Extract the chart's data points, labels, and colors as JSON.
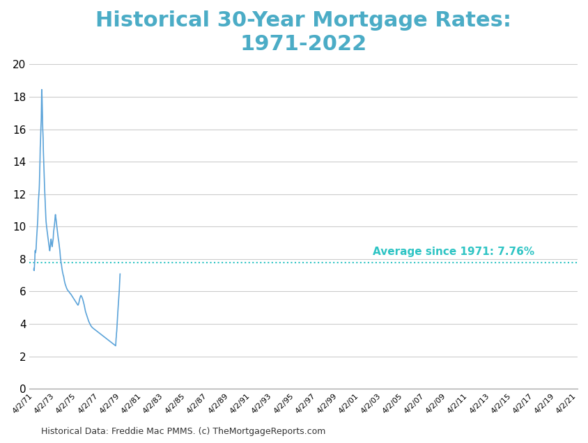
{
  "title": "Historical 30-Year Mortgage Rates:\n1971-2022",
  "title_color": "#4BACC6",
  "title_fontsize": 22,
  "title_fontweight": "bold",
  "avg_label": "Average since 1971: 7.76%",
  "avg_value": 7.76,
  "avg_color": "#2EC4C4",
  "line_color": "#5BA3D9",
  "line_width": 1.2,
  "footnote": "Historical Data: Freddie Mac PMMS. (c) TheMortgageReports.com",
  "ylim": [
    0,
    20
  ],
  "yticks": [
    0,
    2,
    4,
    6,
    8,
    10,
    12,
    14,
    16,
    18,
    20
  ],
  "background_color": "#FFFFFF",
  "grid_color": "#CCCCCC",
  "xtick_labels": [
    "4/2/71",
    "4/2/73",
    "4/2/75",
    "4/2/77",
    "4/2/79",
    "4/2/81",
    "4/2/83",
    "4/2/85",
    "4/2/87",
    "4/2/89",
    "4/2/91",
    "4/2/93",
    "4/2/95",
    "4/2/97",
    "4/2/99",
    "4/2/01",
    "4/2/03",
    "4/2/05",
    "4/2/07",
    "4/2/09",
    "4/2/11",
    "4/2/13",
    "4/2/15",
    "4/2/17",
    "4/2/19",
    "4/2/21"
  ],
  "mortgage_rates": [
    7.33,
    7.44,
    7.29,
    7.54,
    7.73,
    8.0,
    8.45,
    8.53,
    8.38,
    8.44,
    8.53,
    8.61,
    8.89,
    9.19,
    9.37,
    9.56,
    9.75,
    9.97,
    10.17,
    10.38,
    10.77,
    11.12,
    11.54,
    11.73,
    11.93,
    12.07,
    12.29,
    12.64,
    13.15,
    13.74,
    14.18,
    14.88,
    15.12,
    15.64,
    16.04,
    16.35,
    16.63,
    17.48,
    18.45,
    18.2,
    17.8,
    17.2,
    16.54,
    16.0,
    15.75,
    15.38,
    14.67,
    14.27,
    13.88,
    13.47,
    13.0,
    12.65,
    12.35,
    12.04,
    11.74,
    11.43,
    11.07,
    10.75,
    10.52,
    10.31,
    10.18,
    10.06,
    9.94,
    9.85,
    9.72,
    9.64,
    9.52,
    9.44,
    9.32,
    9.21,
    9.14,
    9.05,
    8.93,
    8.82,
    8.72,
    8.62,
    8.53,
    8.51,
    8.65,
    8.8,
    8.94,
    9.05,
    9.14,
    9.23,
    9.17,
    9.03,
    8.89,
    8.82,
    8.76,
    8.83,
    8.97,
    9.05,
    9.14,
    9.23,
    9.44,
    9.67,
    9.75,
    9.86,
    9.97,
    10.08,
    10.18,
    10.33,
    10.51,
    10.67,
    10.74,
    10.62,
    10.52,
    10.44,
    10.31,
    10.21,
    10.08,
    9.97,
    9.88,
    9.74,
    9.63,
    9.54,
    9.44,
    9.32,
    9.21,
    9.14,
    9.07,
    8.97,
    8.85,
    8.72,
    8.63,
    8.54,
    8.38,
    8.22,
    8.07,
    7.96,
    7.87,
    7.78,
    7.71,
    7.63,
    7.52,
    7.43,
    7.35,
    7.28,
    7.2,
    7.15,
    7.08,
    7.02,
    6.97,
    6.95,
    6.87,
    6.79,
    6.72,
    6.65,
    6.59,
    6.54,
    6.49,
    6.44,
    6.41,
    6.37,
    6.33,
    6.29,
    6.26,
    6.22,
    6.19,
    6.16,
    6.14,
    6.11,
    6.09,
    6.07,
    6.05,
    6.04,
    6.03,
    6.01,
    6.0,
    5.98,
    5.96,
    5.94,
    5.92,
    5.91,
    5.89,
    5.87,
    5.86,
    5.84,
    5.83,
    5.82,
    5.79,
    5.77,
    5.75,
    5.73,
    5.71,
    5.69,
    5.67,
    5.65,
    5.63,
    5.61,
    5.59,
    5.57,
    5.55,
    5.53,
    5.51,
    5.49,
    5.47,
    5.45,
    5.43,
    5.41,
    5.39,
    5.37,
    5.35,
    5.33,
    5.31,
    5.29,
    5.27,
    5.25,
    5.23,
    5.21,
    5.19,
    5.17,
    5.16,
    5.17,
    5.2,
    5.24,
    5.29,
    5.34,
    5.41,
    5.47,
    5.53,
    5.58,
    5.62,
    5.66,
    5.7,
    5.73,
    5.75,
    5.74,
    5.72,
    5.7,
    5.68,
    5.65,
    5.62,
    5.58,
    5.55,
    5.51,
    5.47,
    5.42,
    5.37,
    5.32,
    5.27,
    5.22,
    5.16,
    5.1,
    5.04,
    4.97,
    4.9,
    4.83,
    4.78,
    4.73,
    4.69,
    4.65,
    4.62,
    4.57,
    4.53,
    4.48,
    4.44,
    4.4,
    4.36,
    4.32,
    4.28,
    4.25,
    4.22,
    4.18,
    4.15,
    4.12,
    4.09,
    4.06,
    4.03,
    4.01,
    3.98,
    3.96,
    3.94,
    3.91,
    3.89,
    3.87,
    3.85,
    3.83,
    3.82,
    3.8,
    3.79,
    3.78,
    3.77,
    3.75,
    3.74,
    3.73,
    3.72,
    3.71,
    3.7,
    3.69,
    3.68,
    3.67,
    3.66,
    3.65,
    3.64,
    3.63,
    3.62,
    3.61,
    3.6,
    3.59,
    3.58,
    3.57,
    3.56,
    3.55,
    3.54,
    3.53,
    3.52,
    3.51,
    3.5,
    3.49,
    3.48,
    3.47,
    3.46,
    3.45,
    3.44,
    3.43,
    3.42,
    3.41,
    3.4,
    3.39,
    3.38,
    3.37,
    3.36,
    3.35,
    3.34,
    3.33,
    3.32,
    3.31,
    3.3,
    3.29,
    3.28,
    3.27,
    3.26,
    3.25,
    3.24,
    3.23,
    3.22,
    3.21,
    3.2,
    3.19,
    3.18,
    3.17,
    3.16,
    3.15,
    3.14,
    3.13,
    3.12,
    3.11,
    3.1,
    3.09,
    3.08,
    3.07,
    3.06,
    3.05,
    3.04,
    3.03,
    3.02,
    3.01,
    3.0,
    2.99,
    2.98,
    2.97,
    2.96,
    2.95,
    2.94,
    2.93,
    2.92,
    2.91,
    2.9,
    2.89,
    2.88,
    2.87,
    2.86,
    2.85,
    2.84,
    2.83,
    2.82,
    2.81,
    2.8,
    2.79,
    2.78,
    2.77,
    2.76,
    2.75,
    2.74,
    2.73,
    2.72,
    2.71,
    2.7,
    2.69,
    2.68,
    2.67,
    2.66,
    2.65,
    2.87,
    3.11,
    3.22,
    3.45,
    3.55,
    3.76,
    3.92,
    4.16,
    4.42,
    4.67,
    4.89,
    5.1,
    5.27,
    5.45,
    5.65,
    5.81,
    6.02,
    6.28,
    6.55,
    6.81,
    7.08
  ]
}
